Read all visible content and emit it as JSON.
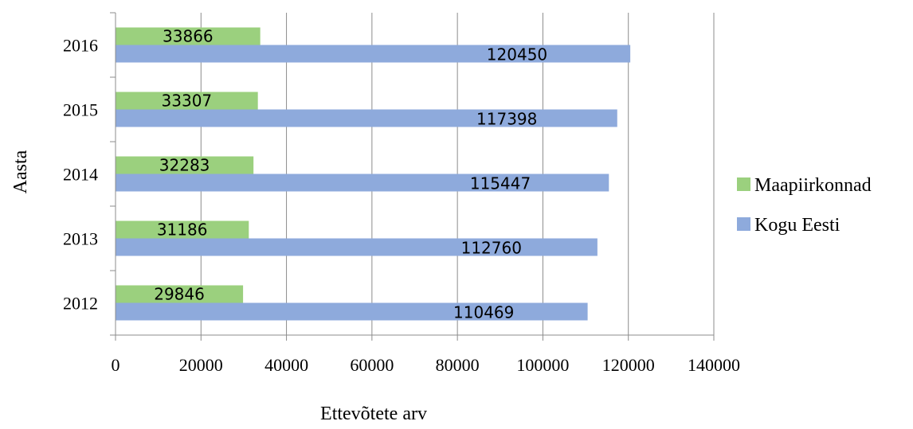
{
  "chart_data": {
    "type": "bar",
    "orientation": "horizontal",
    "categories": [
      "2012",
      "2013",
      "2014",
      "2015",
      "2016"
    ],
    "series": [
      {
        "name": "Maapiirkonnad",
        "color": "#9bd07e",
        "values": [
          29846,
          31186,
          32283,
          33307,
          33866
        ]
      },
      {
        "name": "Kogu Eesti",
        "color": "#8eaadc",
        "values": [
          110469,
          112760,
          115447,
          117398,
          120450
        ]
      }
    ],
    "xlabel": "Ettevõtete arv",
    "ylabel": "Aasta",
    "xlim": [
      0,
      140000
    ],
    "xticks": [
      "0",
      "20000",
      "40000",
      "60000",
      "80000",
      "100000",
      "120000",
      "140000"
    ],
    "grid": "vertical",
    "legend_position": "right",
    "data_labels": true
  }
}
